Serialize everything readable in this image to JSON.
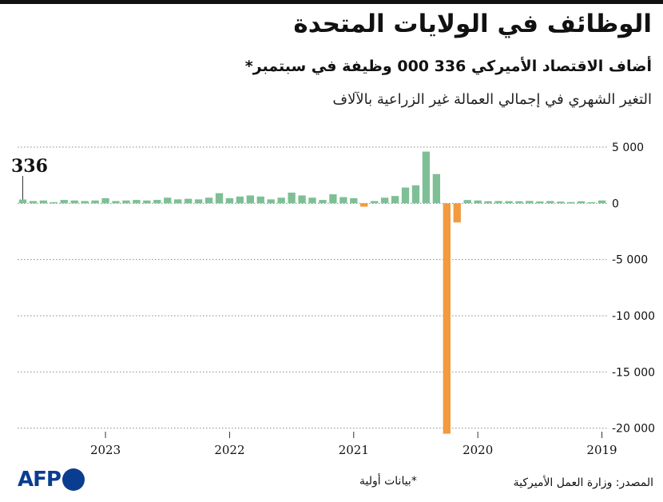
{
  "header": {
    "title": "الوظائف في الولايات المتحدة",
    "subtitle": "أضاف الاقتصاد الأميركي  336 000 وظيفة في سبتمبر*",
    "unit": "التغير الشهري في إجمالي العمالة غير الزراعية بالآلاف"
  },
  "footer": {
    "source": "المصدر: وزارة العمل الأميركية",
    "note": "*بيانات أولية",
    "logo": "AFP"
  },
  "colors": {
    "positive": "#7fbf96",
    "negative": "#f19a3e",
    "grid": "#888888",
    "text": "#111111"
  },
  "chart_data": {
    "type": "bar",
    "title": "الوظائف في الولايات المتحدة",
    "ylabel": "التغير الشهري في إجمالي العمالة غير الزراعية بالآلاف",
    "ylim": [
      -20600,
      5000
    ],
    "yticks": [
      5000,
      0,
      -5000,
      -10000,
      -15000,
      -20000
    ],
    "ytick_labels": [
      "5 000",
      "0",
      "-5 000",
      "-10 000",
      "-15 000",
      "-20 000"
    ],
    "xtick_labels": [
      "2019",
      "2020",
      "2021",
      "2022",
      "2023"
    ],
    "xtick_months_index": [
      0,
      12,
      24,
      36,
      48
    ],
    "highlight": {
      "index": 56,
      "label": "336"
    },
    "x_months": [
      "2019-01",
      "2019-02",
      "2019-03",
      "2019-04",
      "2019-05",
      "2019-06",
      "2019-07",
      "2019-08",
      "2019-09",
      "2019-10",
      "2019-11",
      "2019-12",
      "2020-01",
      "2020-02",
      "2020-03",
      "2020-04",
      "2020-05",
      "2020-06",
      "2020-07",
      "2020-08",
      "2020-09",
      "2020-10",
      "2020-11",
      "2020-12",
      "2021-01",
      "2021-02",
      "2021-03",
      "2021-04",
      "2021-05",
      "2021-06",
      "2021-07",
      "2021-08",
      "2021-09",
      "2021-10",
      "2021-11",
      "2021-12",
      "2022-01",
      "2022-02",
      "2022-03",
      "2022-04",
      "2022-05",
      "2022-06",
      "2022-07",
      "2022-08",
      "2022-09",
      "2022-10",
      "2022-11",
      "2022-12",
      "2023-01",
      "2023-02",
      "2023-03",
      "2023-04",
      "2023-05",
      "2023-06",
      "2023-07",
      "2023-08",
      "2023-09"
    ],
    "values": [
      250,
      100,
      180,
      110,
      150,
      200,
      160,
      210,
      180,
      190,
      200,
      180,
      250,
      290,
      -1700,
      -20500,
      2600,
      4600,
      1600,
      1400,
      650,
      500,
      200,
      -300,
      450,
      550,
      800,
      300,
      500,
      700,
      950,
      500,
      350,
      600,
      700,
      600,
      450,
      900,
      500,
      350,
      400,
      350,
      500,
      300,
      250,
      300,
      250,
      200,
      450,
      250,
      200,
      250,
      300,
      100,
      250,
      200,
      336
    ]
  }
}
